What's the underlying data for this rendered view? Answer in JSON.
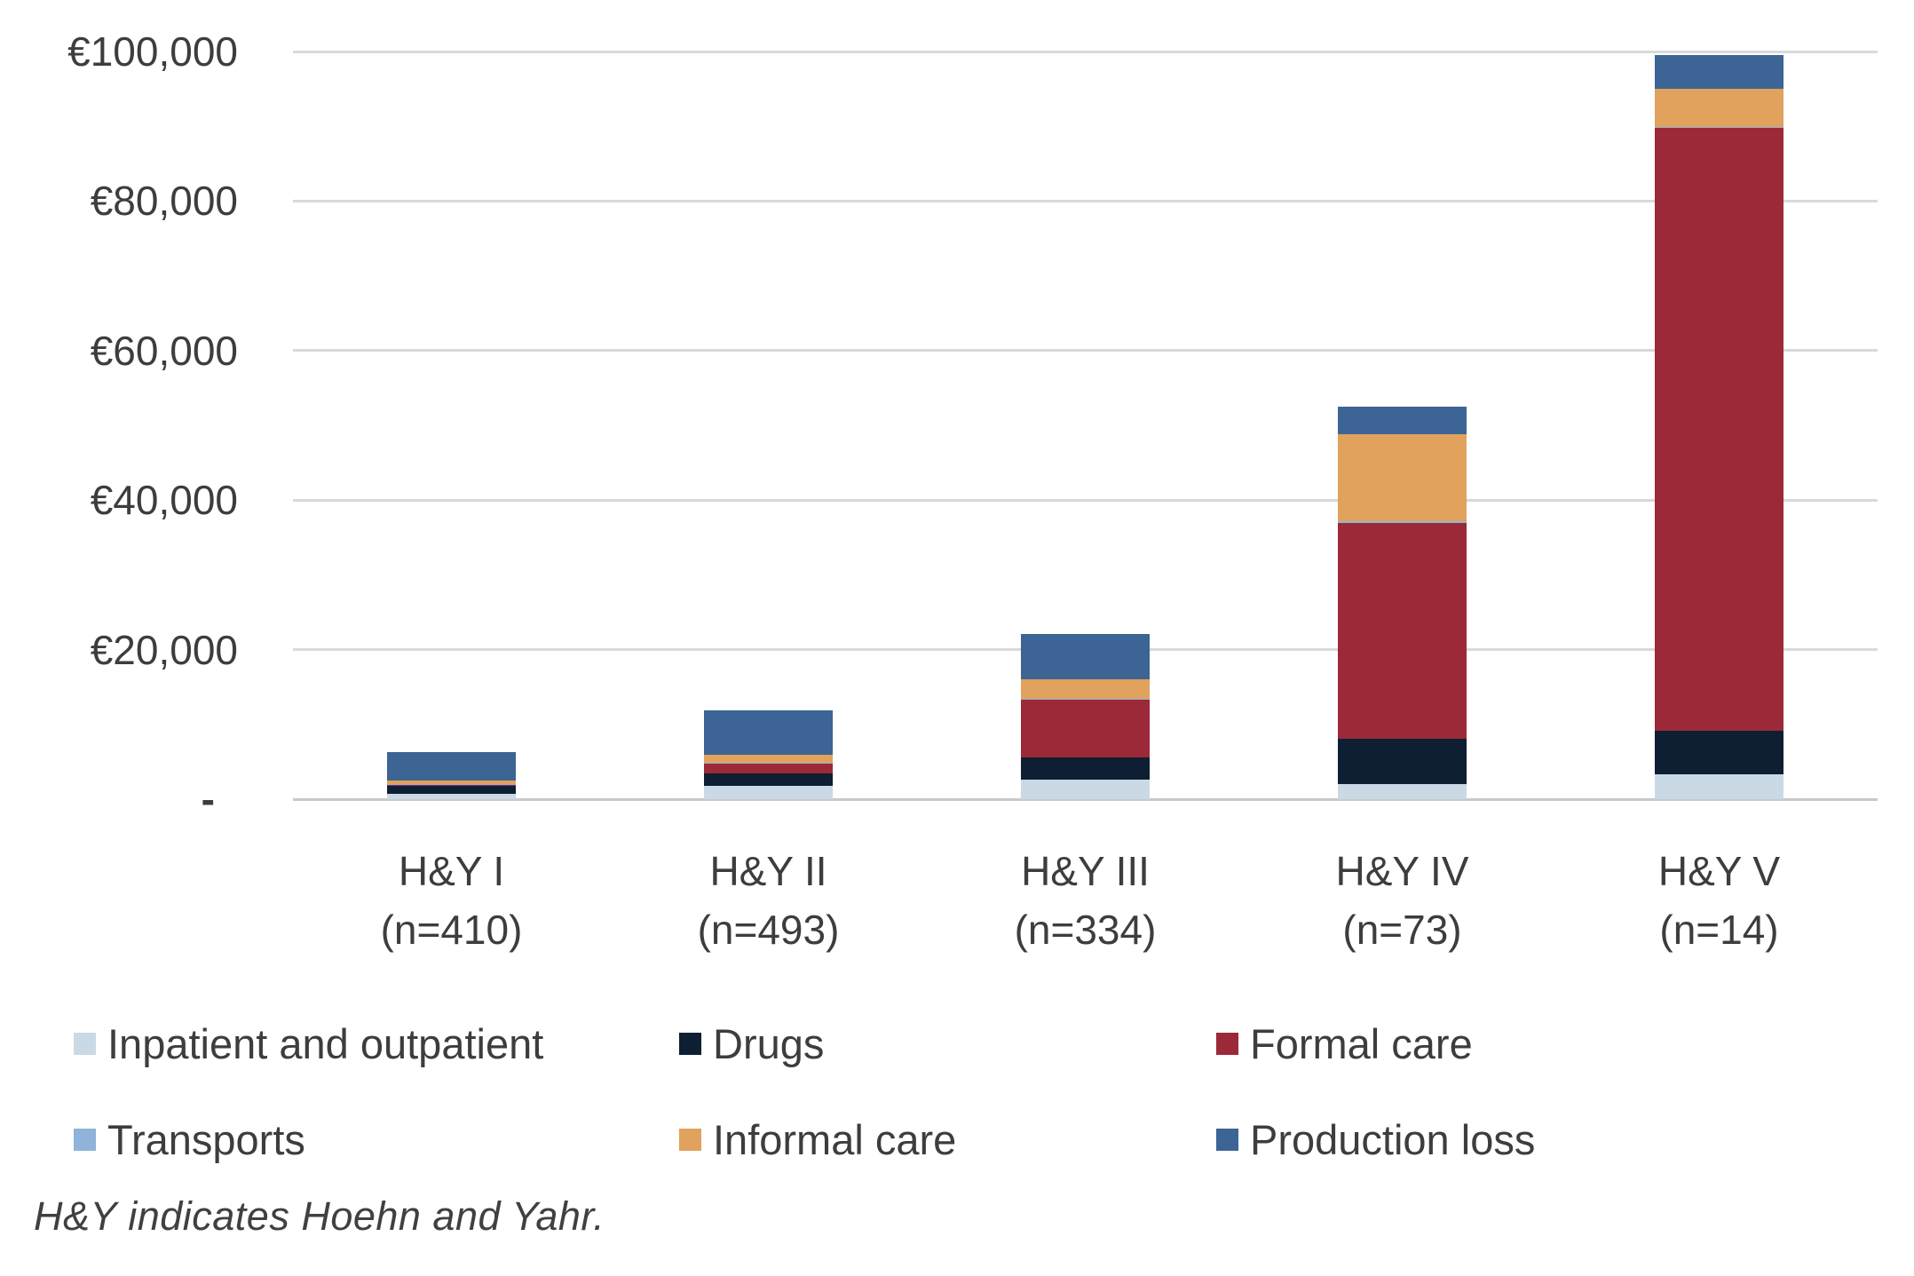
{
  "chart_data": {
    "type": "bar",
    "stacked": true,
    "title": "",
    "currency": "EUR",
    "categories": [
      "H&Y I",
      "H&Y II",
      "H&Y III",
      "H&Y IV",
      "H&Y V"
    ],
    "category_sublabels": [
      "(n=410)",
      "(n=493)",
      "(n=334)",
      "(n=73)",
      "(n=14)"
    ],
    "series": [
      {
        "name": "Inpatient and outpatient",
        "color": "#C9D9E6",
        "values": [
          700,
          1800,
          2600,
          2000,
          3300
        ]
      },
      {
        "name": "Drugs",
        "color": "#0E1E33",
        "values": [
          1050,
          1700,
          2950,
          6050,
          5800
        ]
      },
      {
        "name": "Formal care",
        "color": "#9B2938",
        "values": [
          150,
          1300,
          7700,
          28850,
          80700
        ]
      },
      {
        "name": "Transports",
        "color": "#8FB3D9",
        "values": [
          100,
          100,
          150,
          250,
          150
        ]
      },
      {
        "name": "Informal care",
        "color": "#E0A25C",
        "values": [
          450,
          1000,
          2600,
          11650,
          5100
        ]
      },
      {
        "name": "Production loss",
        "color": "#3C6494",
        "values": [
          3800,
          6000,
          6050,
          3700,
          4500
        ]
      }
    ],
    "ylim": [
      0,
      100000
    ],
    "ytick_interval": 20000,
    "yticks": [
      {
        "value": 100000,
        "label": "€100,000"
      },
      {
        "value": 80000,
        "label": "€80,000"
      },
      {
        "value": 60000,
        "label": "€60,000"
      },
      {
        "value": 40000,
        "label": "€40,000"
      },
      {
        "value": 20000,
        "label": "€20,000"
      },
      {
        "value": 0,
        "label": "-"
      }
    ],
    "grid": "horizontal",
    "legend_position": "bottom",
    "footnote": "H&Y indicates Hoehn and Yahr."
  }
}
